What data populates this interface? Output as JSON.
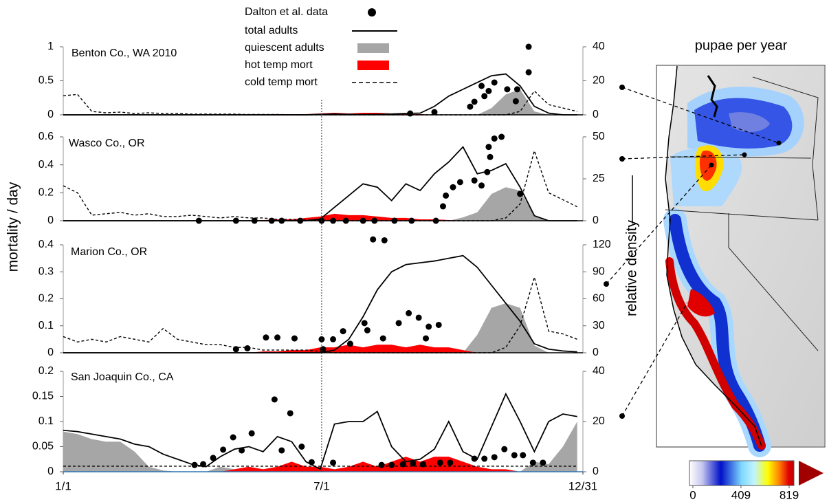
{
  "ylabel": "mortality / day",
  "y2label": "relative density",
  "map": {
    "title": "pupae per year",
    "colorbar": {
      "lim": [
        0,
        819
      ],
      "ticks": [
        0,
        409,
        819
      ]
    }
  },
  "chart_data": [
    {
      "type": "line",
      "title": "Benton  Co., WA 2010",
      "xlim": [
        1,
        365
      ],
      "ylim": [
        0,
        1
      ],
      "yticks": [
        0,
        0.5,
        1
      ],
      "y2lim": [
        0,
        40
      ],
      "y2ticks": [
        0,
        20,
        40
      ],
      "x": [
        1,
        11,
        21,
        31,
        41,
        51,
        61,
        71,
        81,
        91,
        101,
        111,
        121,
        131,
        141,
        151,
        161,
        171,
        181,
        191,
        201,
        211,
        221,
        231,
        241,
        251,
        261,
        271,
        281,
        291,
        301,
        311,
        321,
        331,
        341,
        351,
        361
      ],
      "series": [
        {
          "name": "Dalton et al. data",
          "color": "#000000",
          "style": "scatter",
          "axis": "y2",
          "x": [
            244,
            261,
            286,
            289,
            294,
            296,
            299,
            303,
            312,
            318,
            319,
            327,
            327
          ],
          "values": [
            0.8,
            1.6,
            4.8,
            7.7,
            17,
            11,
            14,
            19,
            15,
            8,
            15,
            25,
            40
          ]
        },
        {
          "name": "total adults",
          "color": "#000000",
          "style": "line",
          "axis": "y2",
          "values": [
            0,
            0,
            0,
            0,
            0,
            0,
            0,
            0,
            0,
            0,
            0,
            0,
            0,
            0,
            0,
            0,
            0,
            0,
            0.3,
            0.5,
            0.3,
            0.2,
            0.3,
            0.5,
            0.8,
            1,
            5,
            11,
            15,
            19,
            23,
            24,
            17,
            5,
            1,
            0,
            0
          ]
        },
        {
          "name": "quiescent adults",
          "color": "#a6a6a6",
          "style": "area",
          "axis": "y2",
          "values": [
            0,
            0,
            0,
            0,
            0,
            0,
            0,
            0,
            0,
            0,
            0,
            0,
            0,
            0,
            0,
            0,
            0,
            0,
            0,
            0,
            0,
            0,
            0,
            0,
            0,
            0,
            0,
            0,
            0,
            0,
            4,
            12,
            15,
            2,
            0,
            0,
            0
          ]
        },
        {
          "name": "hot temp mort",
          "color": "#ff0000",
          "style": "area",
          "values": [
            0,
            0,
            0,
            0,
            0,
            0,
            0,
            0,
            0,
            0,
            0,
            0,
            0,
            0,
            0.005,
            0.01,
            0.01,
            0.01,
            0.02,
            0.03,
            0.02,
            0.03,
            0.03,
            0.02,
            0.01,
            0.01,
            0,
            0,
            0,
            0,
            0,
            0,
            0,
            0,
            0,
            0,
            0
          ]
        },
        {
          "name": "cold temp mort",
          "color": "#000000",
          "style": "dashed",
          "values": [
            0.28,
            0.3,
            0.05,
            0.03,
            0.04,
            0.02,
            0.03,
            0.02,
            0.02,
            0.01,
            0.01,
            0.01,
            0.01,
            0.005,
            0.005,
            0.005,
            0,
            0,
            0,
            0,
            0,
            0,
            0,
            0,
            0,
            0,
            0,
            0,
            0,
            0,
            0,
            0,
            0.05,
            0.35,
            0.15,
            0.1,
            0.05
          ]
        }
      ]
    },
    {
      "type": "line",
      "title": "Wasco Co., OR",
      "xlim": [
        1,
        365
      ],
      "ylim": [
        0,
        0.6
      ],
      "yticks": [
        0,
        0.2,
        0.4,
        0.6
      ],
      "y2lim": [
        0,
        50
      ],
      "y2ticks": [
        0,
        25,
        50
      ],
      "x": [
        1,
        11,
        21,
        31,
        41,
        51,
        61,
        71,
        81,
        91,
        101,
        111,
        121,
        131,
        141,
        151,
        161,
        171,
        181,
        191,
        201,
        211,
        221,
        231,
        241,
        251,
        261,
        271,
        281,
        291,
        301,
        311,
        321,
        331,
        341,
        351,
        361
      ],
      "series": [
        {
          "color": "#000000",
          "style": "scatter",
          "axis": "y2",
          "x": [
            96,
            122,
            135,
            147,
            154,
            167,
            182,
            190,
            199,
            211,
            219,
            233,
            245,
            262,
            267,
            269,
            274,
            279,
            289,
            294,
            298,
            299,
            300,
            303,
            308,
            321
          ],
          "values": [
            0,
            0,
            0,
            0,
            0,
            0,
            0,
            0,
            0,
            0,
            0,
            0,
            0,
            0,
            8.6,
            15,
            20,
            23,
            24,
            21,
            29,
            44,
            38,
            49,
            50,
            16
          ]
        },
        {
          "color": "#000000",
          "style": "line",
          "axis": "y2",
          "values": [
            0,
            0,
            0,
            0,
            0,
            0,
            0,
            0,
            0,
            0,
            0,
            0,
            0,
            0,
            0,
            0,
            0,
            0,
            1,
            8,
            15,
            22,
            20,
            12,
            22,
            18,
            28,
            35,
            44,
            28,
            30,
            34,
            20,
            3,
            0,
            0,
            0
          ]
        },
        {
          "color": "#a6a6a6",
          "style": "area",
          "axis": "y2",
          "values": [
            0,
            0,
            0,
            0,
            0,
            0,
            0,
            0,
            0,
            0,
            0,
            0,
            0,
            0,
            0,
            0,
            0,
            0,
            0,
            0,
            0,
            0,
            0,
            0,
            0,
            0,
            0,
            0,
            2,
            5,
            16,
            20,
            18,
            3,
            0,
            0,
            0
          ]
        },
        {
          "color": "#ff0000",
          "style": "area",
          "values": [
            0,
            0,
            0,
            0,
            0,
            0,
            0,
            0,
            0,
            0,
            0,
            0,
            0,
            0,
            0.005,
            0.01,
            0.01,
            0.02,
            0.03,
            0.05,
            0.04,
            0.04,
            0.03,
            0.02,
            0.02,
            0.01,
            0.01,
            0.005,
            0,
            0,
            0,
            0,
            0,
            0,
            0,
            0,
            0
          ]
        },
        {
          "color": "#000000",
          "style": "dashed",
          "values": [
            0.25,
            0.2,
            0.04,
            0.05,
            0.06,
            0.04,
            0.05,
            0.03,
            0.03,
            0.04,
            0.03,
            0.02,
            0.03,
            0.02,
            0.02,
            0.01,
            0.01,
            0.005,
            0.005,
            0,
            0,
            0,
            0,
            0,
            0,
            0,
            0,
            0,
            0,
            0,
            0,
            0.02,
            0.12,
            0.5,
            0.2,
            0.15,
            0.1
          ]
        }
      ]
    },
    {
      "type": "line",
      "title": "Marion Co., OR",
      "xlim": [
        1,
        365
      ],
      "ylim": [
        0,
        0.4
      ],
      "yticks": [
        0,
        0.1,
        0.2,
        0.3,
        0.4
      ],
      "y2lim": [
        0,
        120
      ],
      "y2ticks": [
        0,
        30,
        60,
        90,
        120
      ],
      "x": [
        1,
        11,
        21,
        31,
        41,
        51,
        61,
        71,
        81,
        91,
        101,
        111,
        121,
        131,
        141,
        151,
        161,
        171,
        181,
        191,
        201,
        211,
        221,
        231,
        241,
        251,
        261,
        271,
        281,
        291,
        301,
        311,
        321,
        331,
        341,
        351,
        361
      ],
      "series": [
        {
          "color": "#000000",
          "style": "scatter",
          "axis": "y2",
          "x": [
            122,
            130,
            143,
            151,
            163,
            182,
            183,
            190,
            197,
            202,
            212,
            214,
            218,
            225,
            226,
            236,
            243,
            250,
            255,
            257,
            264
          ],
          "values": [
            4,
            5,
            17,
            17,
            16,
            15,
            4,
            15,
            24,
            10,
            33,
            25,
            126,
            16,
            125,
            33,
            44,
            39,
            16,
            29,
            31
          ]
        },
        {
          "color": "#000000",
          "style": "line",
          "axis": "y2",
          "values": [
            0,
            0,
            0,
            0,
            0,
            0,
            0,
            0,
            0,
            0,
            0,
            0,
            0,
            0,
            0,
            0,
            0,
            0,
            0,
            3,
            15,
            40,
            70,
            90,
            98,
            100,
            102,
            105,
            108,
            95,
            75,
            55,
            35,
            10,
            4,
            2,
            1
          ]
        },
        {
          "color": "#a6a6a6",
          "style": "area",
          "axis": "y2",
          "values": [
            0,
            0,
            0,
            0,
            0,
            0,
            0,
            0,
            0,
            0,
            0,
            0,
            0,
            0,
            0,
            0,
            0,
            0,
            0,
            0,
            0,
            0,
            0,
            0,
            0,
            0,
            0,
            0,
            0,
            20,
            50,
            55,
            50,
            8,
            0,
            0,
            0
          ]
        },
        {
          "color": "#ff0000",
          "style": "area",
          "values": [
            0,
            0,
            0,
            0,
            0,
            0,
            0,
            0,
            0,
            0,
            0,
            0,
            0,
            0,
            0.005,
            0.005,
            0.01,
            0.01,
            0.02,
            0.02,
            0.03,
            0.02,
            0.03,
            0.03,
            0.02,
            0.03,
            0.02,
            0.02,
            0.01,
            0,
            0,
            0,
            0,
            0,
            0,
            0,
            0
          ]
        },
        {
          "color": "#000000",
          "style": "dashed",
          "values": [
            0.06,
            0.04,
            0.05,
            0.04,
            0.06,
            0.05,
            0.04,
            0.09,
            0.05,
            0.04,
            0.03,
            0.03,
            0.02,
            0.02,
            0.01,
            0.01,
            0.01,
            0.01,
            0.005,
            0,
            0,
            0,
            0,
            0,
            0,
            0,
            0,
            0,
            0,
            0,
            0,
            0.02,
            0.1,
            0.28,
            0.08,
            0.07,
            0.05
          ]
        }
      ]
    },
    {
      "type": "line",
      "title": "San Joaquin Co., CA",
      "xlim": [
        1,
        365
      ],
      "ylim": [
        0,
        0.2
      ],
      "yticks": [
        0,
        0.05,
        0.1,
        0.15,
        0.2
      ],
      "y2lim": [
        0,
        40
      ],
      "y2ticks": [
        0,
        20,
        40
      ],
      "xticks": [
        {
          "value": 1,
          "label": "1/1"
        },
        {
          "value": 182,
          "label": "7/1"
        },
        {
          "value": 365,
          "label": "12/31"
        }
      ],
      "x": [
        1,
        11,
        21,
        31,
        41,
        51,
        61,
        71,
        81,
        91,
        101,
        111,
        121,
        131,
        141,
        151,
        161,
        171,
        181,
        191,
        201,
        211,
        221,
        231,
        241,
        251,
        261,
        271,
        281,
        291,
        301,
        311,
        321,
        331,
        341,
        351,
        361
      ],
      "series": [
        {
          "color": "#000000",
          "style": "scatter",
          "axis": "y2",
          "x": [
            93,
            99,
            106,
            113,
            120,
            126,
            133,
            149,
            154,
            160,
            168,
            175,
            190,
            224,
            231,
            239,
            246,
            253,
            265,
            272,
            289,
            296,
            303,
            310,
            317,
            323,
            330,
            337
          ],
          "values": [
            2.7,
            3,
            5.5,
            8.8,
            13.7,
            8.5,
            15.3,
            28.8,
            8.5,
            23.3,
            10,
            3.8,
            3.6,
            2.7,
            2.7,
            3,
            3.3,
            3,
            3.6,
            3.6,
            5.2,
            5.2,
            5.8,
            9,
            6.6,
            6.6,
            3.6,
            3.6
          ]
        },
        {
          "color": "#000000",
          "style": "line",
          "axis": "y2",
          "values": [
            16.5,
            16,
            15,
            14,
            13,
            11,
            10,
            7,
            5,
            3,
            2,
            6,
            9,
            10,
            8,
            14,
            12,
            4,
            1,
            19,
            20,
            20,
            24,
            10,
            4,
            5,
            9,
            20,
            8,
            5,
            18,
            31,
            20,
            8,
            20,
            23,
            22
          ]
        },
        {
          "color": "#a6a6a6",
          "style": "area",
          "axis": "y2",
          "values": [
            16,
            15,
            13,
            12,
            12,
            8,
            2,
            0.5,
            0,
            0,
            0,
            2,
            1,
            0,
            0,
            0,
            0,
            0,
            0,
            0,
            0,
            0,
            0,
            0,
            0,
            0,
            0,
            0,
            0,
            0,
            0,
            0,
            0,
            4,
            3,
            10,
            20
          ]
        },
        {
          "color": "#ff0000",
          "style": "area",
          "values": [
            0,
            0,
            0,
            0,
            0,
            0,
            0,
            0,
            0,
            0,
            0,
            0,
            0.005,
            0.01,
            0.005,
            0.01,
            0.02,
            0.01,
            0.01,
            0.005,
            0.01,
            0.02,
            0.01,
            0.02,
            0.03,
            0.02,
            0.03,
            0.03,
            0.02,
            0.01,
            0.005,
            0.005,
            0,
            0,
            0,
            0,
            0
          ]
        },
        {
          "color": "#000000",
          "style": "dashed",
          "values": [
            0.011,
            0.011,
            0.011,
            0.011,
            0.011,
            0.011,
            0.011,
            0.011,
            0.011,
            0.011,
            0.011,
            0.011,
            0.011,
            0.011,
            0.011,
            0.011,
            0.011,
            0.011,
            0.011,
            0.011,
            0.011,
            0.011,
            0.011,
            0.011,
            0.011,
            0.011,
            0.011,
            0.011,
            0.011,
            0.011,
            0.011,
            0.011,
            0.011,
            0.011,
            0.011,
            0.011,
            0.011
          ]
        }
      ]
    }
  ]
}
